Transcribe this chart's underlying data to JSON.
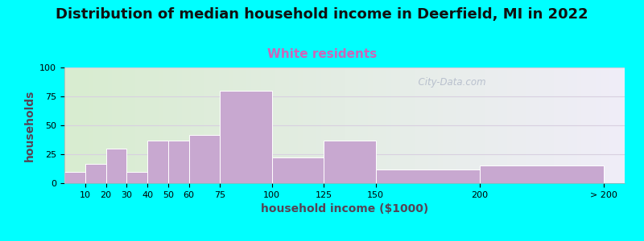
{
  "title": "Distribution of median household income in Deerfield, MI in 2022",
  "subtitle": "White residents",
  "xlabel": "household income ($1000)",
  "ylabel": "households",
  "bar_right_edges": [
    10,
    20,
    30,
    40,
    50,
    60,
    75,
    100,
    125,
    150,
    200,
    260
  ],
  "bar_labels": [
    "10",
    "20",
    "30",
    "40",
    "50",
    "60",
    "75",
    "100",
    "125",
    "150",
    "200",
    "> 200"
  ],
  "bar_heights": [
    10,
    17,
    30,
    10,
    37,
    37,
    42,
    80,
    22,
    37,
    12,
    15
  ],
  "bar_color": "#c8a8d0",
  "ylim": [
    0,
    100
  ],
  "yticks": [
    0,
    25,
    50,
    75,
    100
  ],
  "xlim_max": 270,
  "background_color": "#00ffff",
  "plot_bg_color_topleft": "#d8ecd0",
  "plot_bg_color_topright": "#f0eef8",
  "plot_bg_color_botleft": "#e8f5e0",
  "plot_bg_color_botright": "#f8f6fc",
  "title_fontsize": 13,
  "subtitle_fontsize": 11,
  "subtitle_color": "#cc66bb",
  "axis_label_fontsize": 10,
  "watermark_text": "  City-Data.com",
  "watermark_color": "#b0b8c8",
  "grid_color": "#d8d0e0",
  "tick_fontsize": 8
}
